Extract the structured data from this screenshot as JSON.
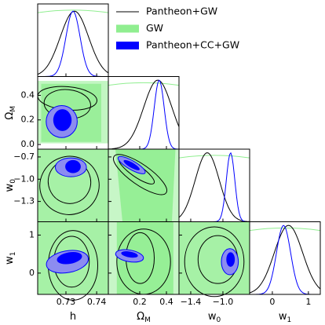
{
  "chart_data": {
    "type": "corner",
    "legend": {
      "position": "upper right",
      "entries": [
        {
          "name": "Pantheon+GW",
          "color": "#000000",
          "style": "line"
        },
        {
          "name": "GW",
          "color": "#90ee90",
          "style": "patch"
        },
        {
          "name": "Pantheon+CC+GW",
          "color": "#0000ff",
          "style": "patch"
        }
      ]
    },
    "parameters": [
      {
        "label": {
          "main": "h"
        },
        "xlim": [
          0.7208,
          0.7438
        ],
        "xticks": [
          0.73,
          0.74
        ]
      },
      {
        "label": {
          "main": "Ω",
          "sub": "M"
        },
        "xlim": [
          -0.035,
          0.494
        ],
        "xticks": [
          0.2,
          0.4
        ],
        "ylim": [
          -0.038,
          0.553
        ],
        "yticks": [
          {
            "value": 0,
            "label": "0.0"
          },
          0.2,
          0.4
        ]
      },
      {
        "label": {
          "main": "w",
          "sub": "0"
        },
        "xlim": [
          -1.546,
          -0.668
        ],
        "xticks": [
          {
            "value": -1.4,
            "label": "−1.4"
          },
          {
            "value": -1.0,
            "label": "−1.0"
          }
        ],
        "ylim": [
          -1.574,
          -0.595
        ],
        "yticks": [
          {
            "value": -1.3,
            "label": "−1.3"
          },
          {
            "value": -1.0,
            "label": "−1.0"
          },
          {
            "value": -0.7,
            "label": "−0.7"
          }
        ]
      },
      {
        "label": {
          "main": "w",
          "sub": "1"
        },
        "xlim": [
          -0.63,
          1.33
        ],
        "xticks": [
          0,
          1
        ],
        "ylim": [
          -0.56,
          1.35
        ],
        "yticks": [
          0,
          1
        ]
      }
    ]
  }
}
